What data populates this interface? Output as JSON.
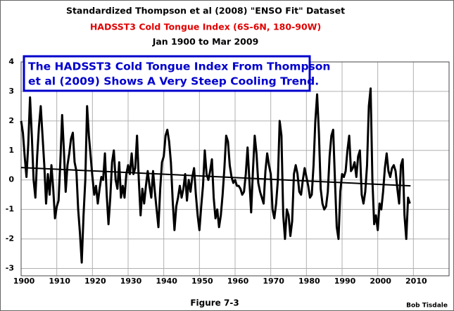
{
  "chart_data": {
    "type": "line",
    "title": "Standardized Thompson et al (2008) \"ENSO Fit\" Dataset",
    "subtitle": "HADSST3 Cold Tongue Index (6S-6N, 180-90W)",
    "subtitle2": "Jan 1900 to Mar 2009",
    "annotation": [
      "The HADSST3 Cold Tongue Index From Thompson",
      "et al (2009) Shows A Very Steep Cooling Trend."
    ],
    "caption": "Figure 7-3",
    "author": "Bob Tisdale",
    "x": [
      1900,
      1900.5,
      1901,
      1901.5,
      1902,
      1902.5,
      1903,
      1903.5,
      1904,
      1904.5,
      1905,
      1905.5,
      1906,
      1906.5,
      1907,
      1907.5,
      1908,
      1908.5,
      1909,
      1909.5,
      1910,
      1910.5,
      1911,
      1911.5,
      1912,
      1912.5,
      1913,
      1913.5,
      1914,
      1914.5,
      1915,
      1915.5,
      1916,
      1916.5,
      1917,
      1917.5,
      1918,
      1918.5,
      1919,
      1919.5,
      1920,
      1920.5,
      1921,
      1921.5,
      1922,
      1922.5,
      1923,
      1923.5,
      1924,
      1924.5,
      1925,
      1925.5,
      1926,
      1926.5,
      1927,
      1927.5,
      1928,
      1928.5,
      1929,
      1929.5,
      1930,
      1930.5,
      1931,
      1931.5,
      1932,
      1932.5,
      1933,
      1933.5,
      1934,
      1934.5,
      1935,
      1935.5,
      1936,
      1936.5,
      1937,
      1937.5,
      1938,
      1938.5,
      1939,
      1939.5,
      1940,
      1940.5,
      1941,
      1941.5,
      1942,
      1942.5,
      1943,
      1943.5,
      1944,
      1944.5,
      1945,
      1945.5,
      1946,
      1946.5,
      1947,
      1947.5,
      1948,
      1948.5,
      1949,
      1949.5,
      1950,
      1950.5,
      1951,
      1951.5,
      1952,
      1952.5,
      1953,
      1953.5,
      1954,
      1954.5,
      1955,
      1955.5,
      1956,
      1956.5,
      1957,
      1957.5,
      1958,
      1958.5,
      1959,
      1959.5,
      1960,
      1960.5,
      1961,
      1961.5,
      1962,
      1962.5,
      1963,
      1963.5,
      1964,
      1964.5,
      1965,
      1965.5,
      1966,
      1966.5,
      1967,
      1967.5,
      1968,
      1968.5,
      1969,
      1969.5,
      1970,
      1970.5,
      1971,
      1971.5,
      1972,
      1972.5,
      1973,
      1973.5,
      1974,
      1974.5,
      1975,
      1975.5,
      1976,
      1976.5,
      1977,
      1977.5,
      1978,
      1978.5,
      1979,
      1979.5,
      1980,
      1980.5,
      1981,
      1981.5,
      1982,
      1982.5,
      1983,
      1983.5,
      1984,
      1984.5,
      1985,
      1985.5,
      1986,
      1986.5,
      1987,
      1987.5,
      1988,
      1988.5,
      1989,
      1989.5,
      1990,
      1990.5,
      1991,
      1991.5,
      1992,
      1992.5,
      1993,
      1993.5,
      1994,
      1994.5,
      1995,
      1995.5,
      1996,
      1996.5,
      1997,
      1997.5,
      1998,
      1998.5,
      1999,
      1999.5,
      2000,
      2000.5,
      2001,
      2001.5,
      2002,
      2002.5,
      2003,
      2003.5,
      2004,
      2004.5,
      2005,
      2005.5,
      2006,
      2006.5,
      2007,
      2007.5,
      2008,
      2008.5,
      2009
    ],
    "series": [
      {
        "color": "#000000",
        "values": [
          2.0,
          1.6,
          0.8,
          0.1,
          1.2,
          2.8,
          1.5,
          0.0,
          -0.6,
          0.8,
          1.8,
          2.5,
          1.5,
          0.5,
          -0.8,
          0.2,
          -0.5,
          0.5,
          -0.3,
          -1.3,
          -0.9,
          -0.7,
          0.6,
          2.2,
          1.0,
          -0.4,
          0.5,
          0.9,
          1.4,
          1.6,
          0.6,
          0.3,
          -1.0,
          -1.8,
          -2.8,
          -1.2,
          0.0,
          2.5,
          1.5,
          0.8,
          0.1,
          -0.5,
          -0.2,
          -0.8,
          -0.3,
          0.1,
          0.0,
          0.9,
          -0.5,
          -1.5,
          -0.6,
          0.6,
          1.0,
          0.0,
          -0.3,
          0.6,
          -0.6,
          -0.2,
          -0.6,
          0.2,
          0.5,
          0.2,
          0.9,
          0.2,
          0.4,
          1.5,
          0.0,
          -1.2,
          -0.3,
          -0.8,
          -0.2,
          0.3,
          -0.2,
          -0.6,
          0.3,
          -0.4,
          -1.0,
          -1.6,
          -0.3,
          0.6,
          0.8,
          1.5,
          1.7,
          1.3,
          0.6,
          -0.7,
          -1.7,
          -0.9,
          -0.6,
          -0.2,
          -0.6,
          -0.3,
          0.2,
          -0.7,
          0.0,
          -0.4,
          0.1,
          0.4,
          -0.5,
          -1.2,
          -1.7,
          -0.9,
          -0.2,
          1.0,
          0.2,
          0.0,
          0.3,
          0.7,
          -0.6,
          -1.3,
          -1.0,
          -1.6,
          -1.2,
          -0.5,
          0.4,
          1.5,
          1.3,
          0.5,
          0.1,
          -0.1,
          0.0,
          -0.2,
          -0.2,
          -0.3,
          -0.5,
          -0.4,
          0.2,
          1.1,
          0.0,
          -1.1,
          0.3,
          1.5,
          0.9,
          -0.1,
          -0.4,
          -0.6,
          -0.8,
          0.3,
          0.9,
          0.5,
          0.2,
          -1.0,
          -1.3,
          -0.8,
          0.0,
          2.0,
          1.5,
          -1.2,
          -2.0,
          -1.0,
          -1.2,
          -1.9,
          -1.4,
          0.2,
          0.5,
          0.2,
          -0.4,
          -0.5,
          0.0,
          0.4,
          0.1,
          -0.2,
          -0.6,
          -0.5,
          0.5,
          2.0,
          2.9,
          1.6,
          -0.3,
          -0.8,
          -1.0,
          -0.9,
          -0.4,
          0.8,
          1.5,
          1.7,
          0.0,
          -1.6,
          -2.0,
          -0.4,
          0.2,
          0.1,
          0.3,
          1.0,
          1.5,
          0.3,
          0.4,
          0.6,
          0.1,
          0.8,
          1.0,
          -0.5,
          -0.8,
          -0.4,
          0.5,
          2.5,
          3.1,
          0.0,
          -1.5,
          -1.2,
          -1.7,
          -0.8,
          -1.0,
          -0.4,
          0.4,
          0.9,
          0.3,
          0.1,
          0.4,
          0.5,
          0.3,
          -0.3,
          -0.8,
          0.5,
          0.7,
          -1.2,
          -2.0,
          -0.6,
          -0.8
        ]
      }
    ],
    "trend": {
      "color": "#000000",
      "x": [
        1900,
        2009.2
      ],
      "values": [
        0.42,
        -0.2
      ]
    },
    "xlim": [
      1900,
      2020
    ],
    "xticks": [
      1900,
      1910,
      1920,
      1930,
      1940,
      1950,
      1960,
      1970,
      1980,
      1990,
      2000,
      2010
    ],
    "ylim": [
      -3.25,
      4
    ],
    "yticks": [
      -3,
      -2,
      -1,
      0,
      1,
      2,
      3,
      4
    ],
    "grid": true,
    "grid_color": "#b0b0b0",
    "title_colors": [
      "#000000",
      "#e00000",
      "#000000"
    ],
    "annotation_color": "#0000cc"
  }
}
